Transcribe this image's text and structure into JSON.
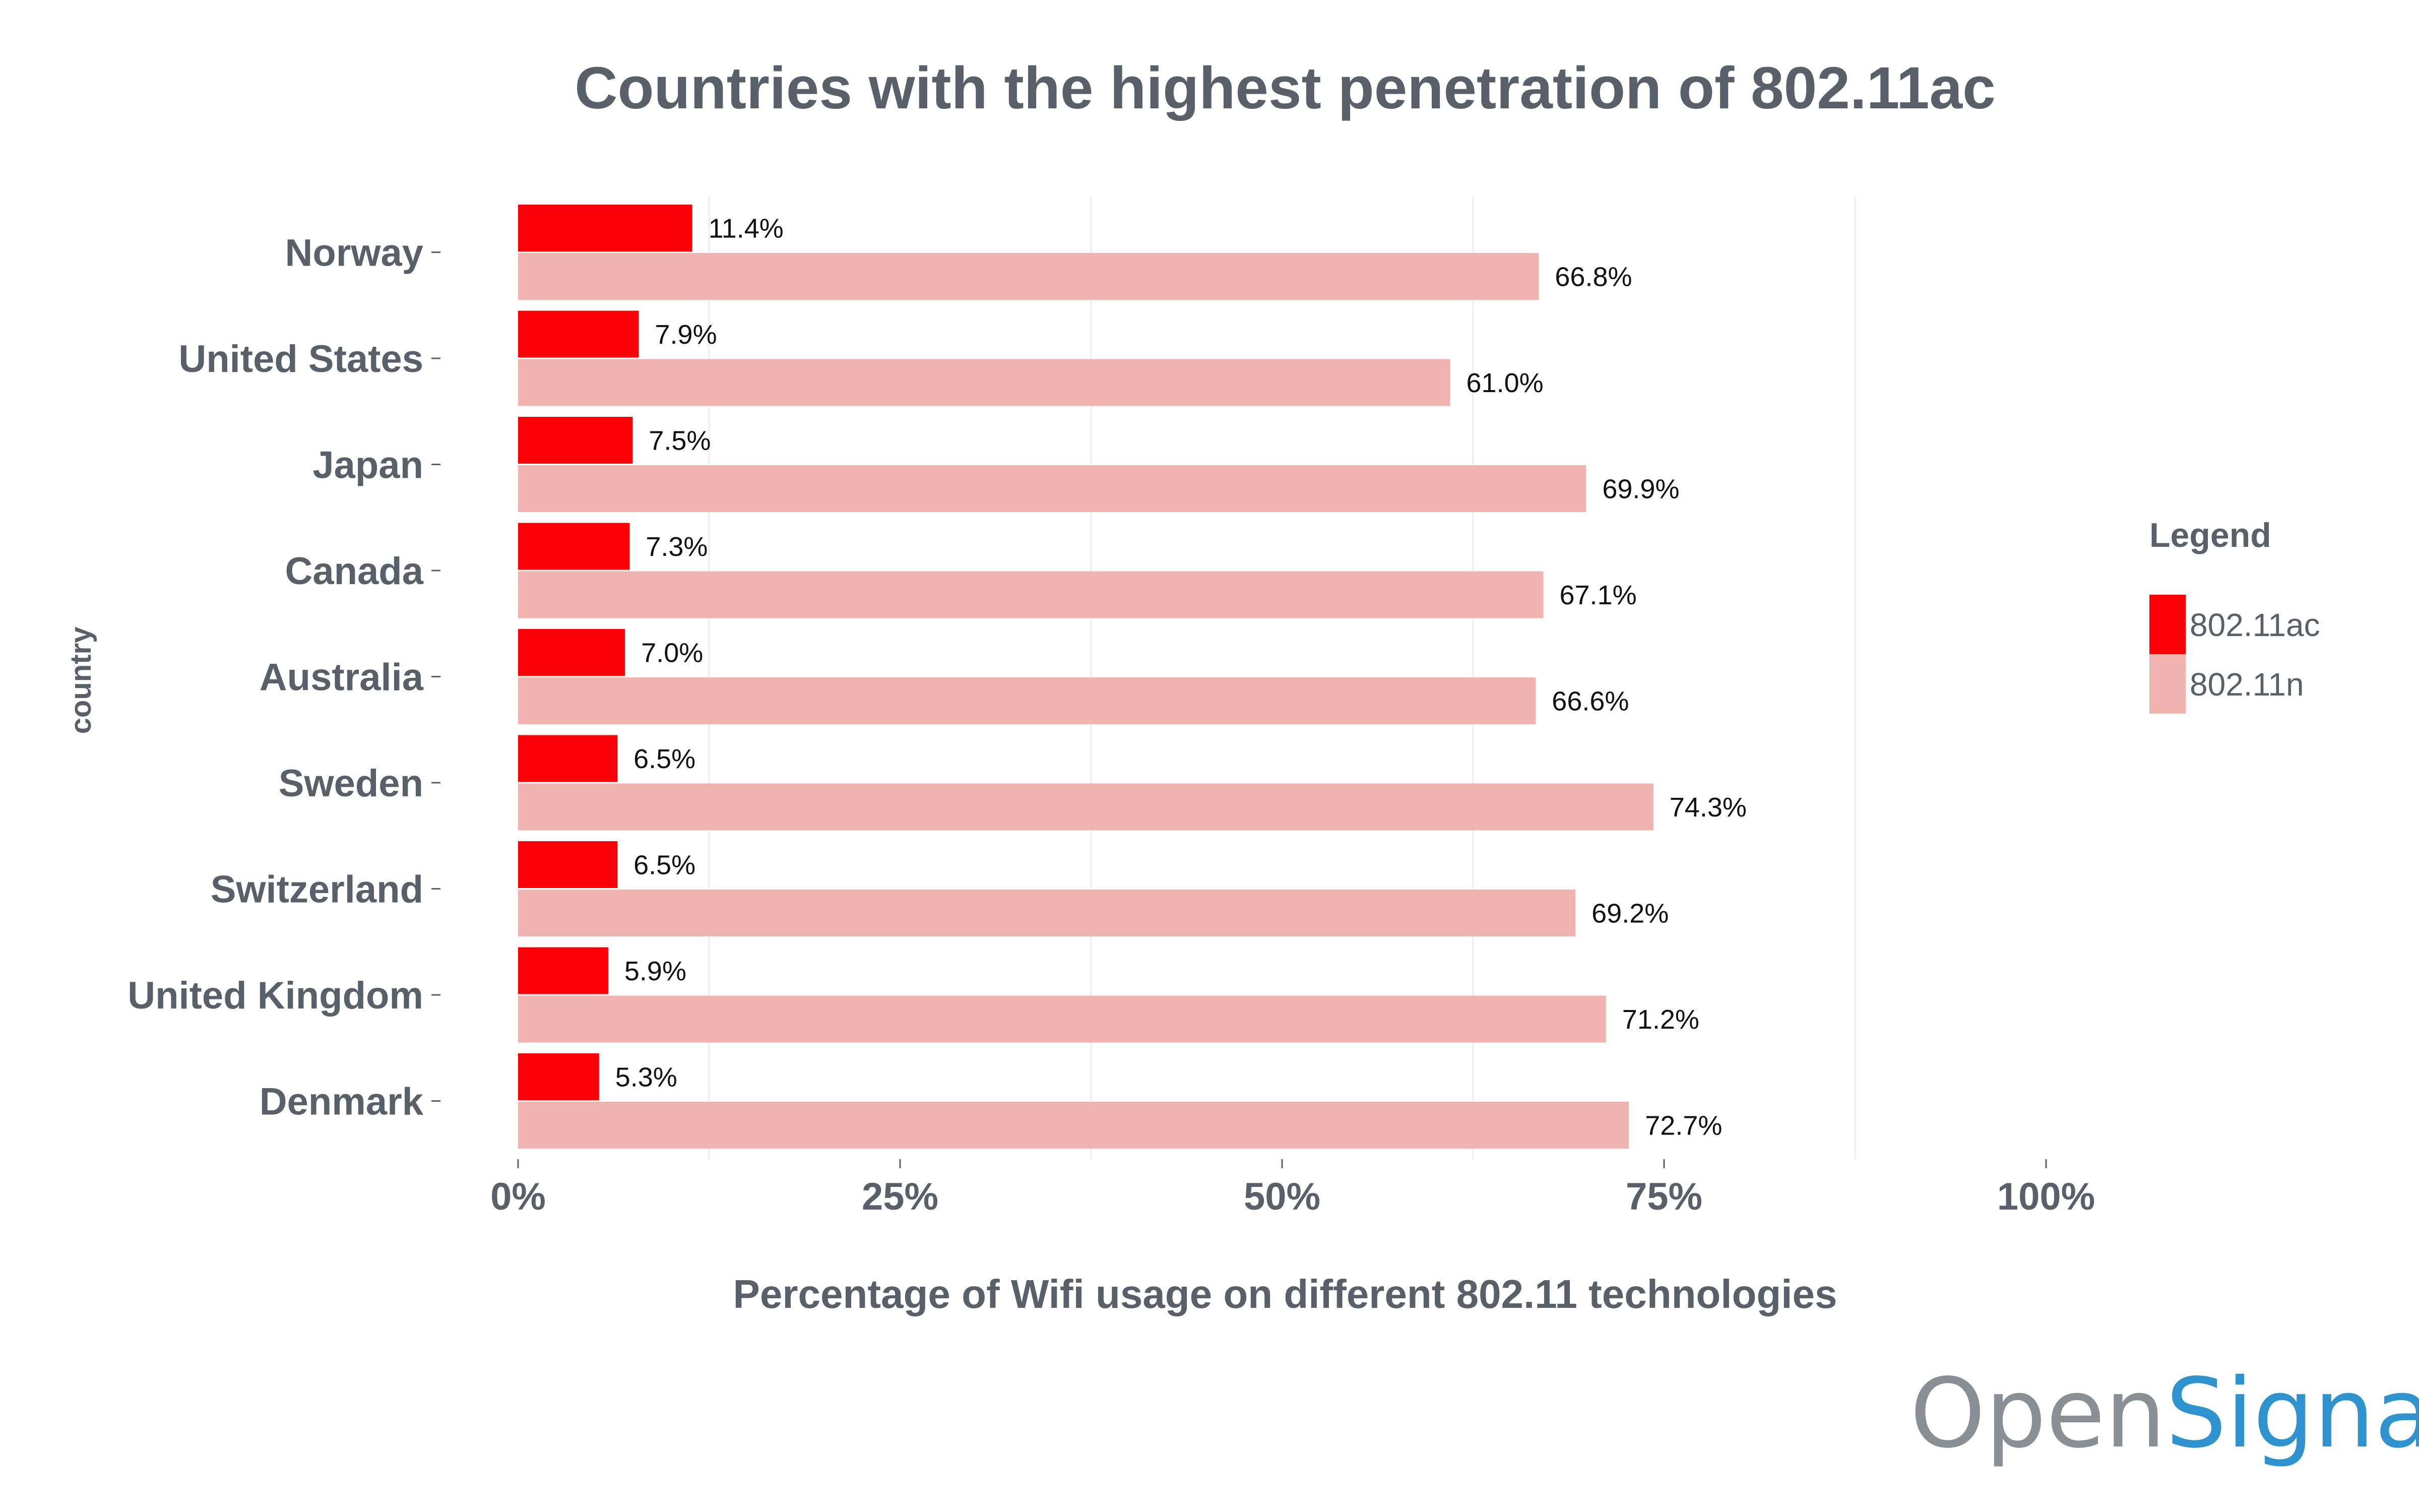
{
  "chart_data": {
    "type": "bar",
    "orientation": "horizontal",
    "title": "Countries with the highest penetration of 802.11ac",
    "xlabel": "Percentage of Wifi usage on different 802.11 technologies",
    "ylabel": "country",
    "xlim": [
      0,
      100
    ],
    "x_ticks": [
      0,
      25,
      50,
      75,
      100
    ],
    "x_tick_labels": [
      "0%",
      "25%",
      "50%",
      "75%",
      "100%"
    ],
    "categories": [
      "Norway",
      "United States",
      "Japan",
      "Canada",
      "Australia",
      "Sweden",
      "Switzerland",
      "United Kingdom",
      "Denmark"
    ],
    "series": [
      {
        "name": "802.11ac",
        "color": "#fb0007",
        "values": [
          11.4,
          7.9,
          7.5,
          7.3,
          7.0,
          6.5,
          6.5,
          5.9,
          5.3
        ],
        "labels": [
          "11.4%",
          "7.9%",
          "7.5%",
          "7.3%",
          "7.0%",
          "6.5%",
          "6.5%",
          "5.9%",
          "5.3%"
        ]
      },
      {
        "name": "802.11n",
        "color": "#f1b3b0",
        "values": [
          66.8,
          61.0,
          69.9,
          67.1,
          66.6,
          74.3,
          69.2,
          71.2,
          72.7
        ],
        "labels": [
          "66.8%",
          "61.0%",
          "69.9%",
          "67.1%",
          "66.6%",
          "74.3%",
          "69.2%",
          "71.2%",
          "72.7%"
        ]
      }
    ],
    "legend": {
      "title": "Legend",
      "placement": "right"
    },
    "grid": "vertical-minor"
  },
  "logo": {
    "part1": "Open",
    "part2": "Signal",
    "color1": "#8a8f96",
    "color2": "#2f93cf"
  }
}
